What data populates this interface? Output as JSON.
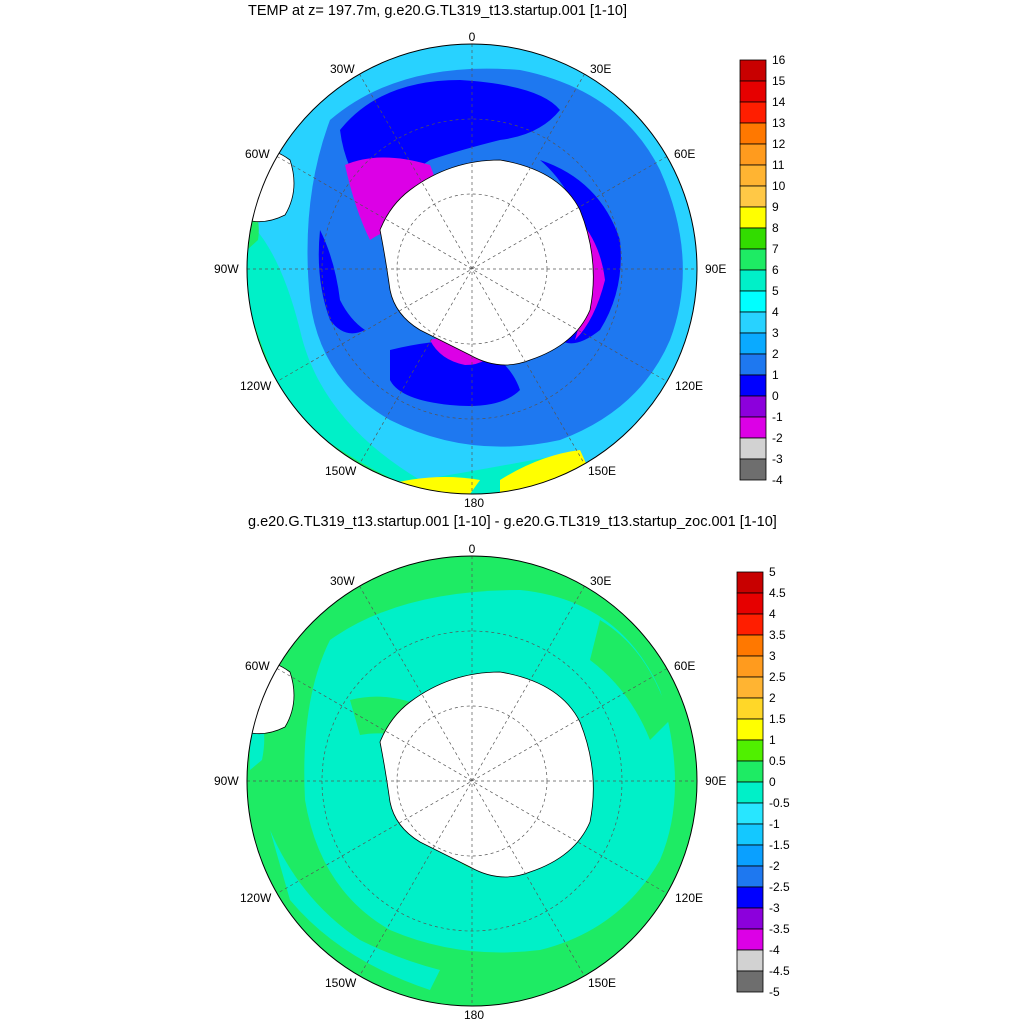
{
  "maps": [
    {
      "title": "TEMP at z= 197.7m, g.e20.G.TL319_t13.startup.001 [1-10]",
      "lon_labels": {
        "n": "0",
        "ne": "30E",
        "e1": "60E",
        "e": "90E",
        "se1": "120E",
        "se": "150E",
        "s": "180",
        "sw": "150W",
        "sw1": "120W",
        "w": "90W",
        "nw1": "60W",
        "nw": "30W"
      },
      "colorbar": {
        "labels": [
          "16",
          "15",
          "14",
          "13",
          "12",
          "11",
          "10",
          "9",
          "8",
          "7",
          "6",
          "5",
          "4",
          "3",
          "2",
          "1",
          "0",
          "-1",
          "-2",
          "-3",
          "-4"
        ],
        "colors": [
          "#c80000",
          "#e60000",
          "#ff1e00",
          "#ff7800",
          "#ff9b1e",
          "#ffb432",
          "#ffc846",
          "#ffff00",
          "#32dc00",
          "#1eeb64",
          "#00f0c8",
          "#00ffff",
          "#28d2ff",
          "#0aaaff",
          "#1e78f0",
          "#0000ff",
          "#8c00dc",
          "#dc00e6",
          "#d2d2d2",
          "#6e6e6e"
        ]
      }
    },
    {
      "title": "g.e20.G.TL319_t13.startup.001 [1-10] - g.e20.G.TL319_t13.startup_zoc.001 [1-10]",
      "lon_labels": {
        "n": "0",
        "ne": "30E",
        "e1": "60E",
        "e": "90E",
        "se1": "120E",
        "se": "150E",
        "s": "180",
        "sw": "150W",
        "sw1": "120W",
        "w": "90W",
        "nw1": "60W",
        "nw": "30W"
      },
      "colorbar": {
        "labels": [
          "5",
          "4.5",
          "4",
          "3.5",
          "3",
          "2.5",
          "2",
          "1.5",
          "1",
          "0.5",
          "0",
          "-0.5",
          "-1",
          "-1.5",
          "-2",
          "-2.5",
          "-3",
          "-3.5",
          "-4",
          "-4.5",
          "-5"
        ],
        "colors": [
          "#c80000",
          "#e60000",
          "#ff1e00",
          "#ff7800",
          "#ff9b1e",
          "#ffb432",
          "#ffd728",
          "#ffff00",
          "#50f000",
          "#1eeb64",
          "#00f0c8",
          "#28e6ff",
          "#14c8ff",
          "#0aa0ff",
          "#1e78f0",
          "#0000ff",
          "#8c00dc",
          "#dc00e6",
          "#d2d2d2",
          "#6e6e6e"
        ]
      }
    }
  ]
}
